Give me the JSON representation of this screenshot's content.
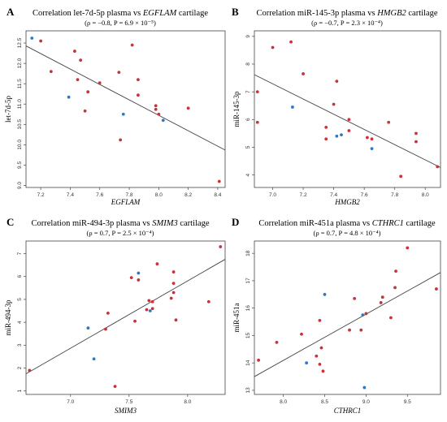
{
  "colors": {
    "red": "#c8323c",
    "blue": "#2e78c8",
    "line": "#444444"
  },
  "chart_data": [
    {
      "type": "scatter",
      "letter": "A",
      "title_prefix": "Correlation let-7d-5p plasma vs ",
      "title_gene": "EGFLAM",
      "title_suffix": " cartilage",
      "subtitle": "(ρ = −0.8, P = 6.9 × 10⁻⁵)",
      "xlabel": "EGFLAM",
      "ylabel": "let-7d-5p",
      "xlim": [
        7.1,
        8.45
      ],
      "ylim": [
        8.95,
        12.8
      ],
      "xticks": [
        7.2,
        7.4,
        7.6,
        7.8,
        8.0,
        8.2,
        8.4
      ],
      "xtick_labels": [
        "7.2",
        "7.4",
        "7.6",
        "7.8",
        "8.0",
        "8.2",
        "8.4"
      ],
      "yticks": [
        9.0,
        9.5,
        10.0,
        10.5,
        11.0,
        11.5,
        12.0,
        12.5
      ],
      "ytick_labels": [
        "9.0",
        "9.5",
        "10.0",
        "10.5",
        "11.0",
        "11.5",
        "12.0",
        "12.5"
      ],
      "fit": [
        [
          7.1,
          12.43
        ],
        [
          8.45,
          9.87
        ]
      ],
      "red_points": [
        [
          7.2,
          12.55
        ],
        [
          7.27,
          11.8
        ],
        [
          7.43,
          12.3
        ],
        [
          7.47,
          12.08
        ],
        [
          7.45,
          11.6
        ],
        [
          7.52,
          11.3
        ],
        [
          7.5,
          10.83
        ],
        [
          7.6,
          11.52
        ],
        [
          7.73,
          11.78
        ],
        [
          7.74,
          10.12
        ],
        [
          7.82,
          12.45
        ],
        [
          7.86,
          11.6
        ],
        [
          7.86,
          11.22
        ],
        [
          7.98,
          10.96
        ],
        [
          7.98,
          10.87
        ],
        [
          8.0,
          10.75
        ],
        [
          8.2,
          10.9
        ],
        [
          8.41,
          9.1
        ]
      ],
      "blue_points": [
        [
          7.14,
          12.62
        ],
        [
          7.39,
          11.17
        ],
        [
          7.76,
          10.75
        ],
        [
          8.03,
          10.6
        ]
      ]
    },
    {
      "type": "scatter",
      "letter": "B",
      "title_prefix": "Correlation miR-145-3p plasma vs ",
      "title_gene": "HMGB2",
      "title_suffix": " cartilage",
      "subtitle": "(ρ = −0.7, P = 2.3 × 10⁻⁴)",
      "xlabel": "HMGB2",
      "ylabel": "miR-145-3p",
      "xlim": [
        6.88,
        8.1
      ],
      "ylim": [
        3.55,
        9.2
      ],
      "xticks": [
        7.0,
        7.2,
        7.4,
        7.6,
        7.8,
        8.0
      ],
      "xtick_labels": [
        "7.0",
        "7.2",
        "7.4",
        "7.6",
        "7.8",
        "8.0"
      ],
      "yticks": [
        4,
        5,
        6,
        7,
        8,
        9
      ],
      "ytick_labels": [
        "4",
        "5",
        "6",
        "7",
        "8",
        "9"
      ],
      "fit": [
        [
          6.88,
          7.62
        ],
        [
          8.1,
          4.27
        ]
      ],
      "red_points": [
        [
          6.9,
          7.0
        ],
        [
          6.9,
          5.9
        ],
        [
          7.0,
          8.6
        ],
        [
          7.12,
          8.8
        ],
        [
          7.2,
          7.65
        ],
        [
          7.35,
          5.72
        ],
        [
          7.35,
          5.3
        ],
        [
          7.4,
          6.55
        ],
        [
          7.42,
          7.38
        ],
        [
          7.5,
          6.0
        ],
        [
          7.5,
          5.6
        ],
        [
          7.62,
          5.35
        ],
        [
          7.65,
          5.3
        ],
        [
          7.76,
          5.9
        ],
        [
          7.84,
          3.95
        ],
        [
          7.94,
          5.5
        ],
        [
          7.94,
          5.2
        ],
        [
          8.08,
          4.3
        ]
      ],
      "blue_points": [
        [
          7.13,
          6.45
        ],
        [
          7.42,
          5.4
        ],
        [
          7.45,
          5.45
        ],
        [
          7.65,
          4.95
        ]
      ]
    },
    {
      "type": "scatter",
      "letter": "C",
      "title_prefix": "Correlation miR-494-3p plasma vs ",
      "title_gene": "SMIM3",
      "title_suffix": " cartilage",
      "subtitle": "(ρ = 0.7, P = 2.5 × 10⁻⁴)",
      "xlabel": "SMIM3",
      "ylabel": "miR-494-3p",
      "xlim": [
        6.62,
        8.32
      ],
      "ylim": [
        0.85,
        7.55
      ],
      "xticks": [
        7.0,
        7.5,
        8.0
      ],
      "xtick_labels": [
        "7.0",
        "7.5",
        "8.0"
      ],
      "yticks": [
        1,
        2,
        3,
        4,
        5,
        6,
        7
      ],
      "ytick_labels": [
        "1",
        "2",
        "3",
        "4",
        "5",
        "6",
        "7"
      ],
      "fit": [
        [
          6.62,
          1.75
        ],
        [
          8.32,
          6.75
        ]
      ],
      "red_points": [
        [
          6.65,
          1.9
        ],
        [
          7.3,
          3.7
        ],
        [
          7.32,
          4.4
        ],
        [
          7.38,
          1.2
        ],
        [
          7.52,
          5.95
        ],
        [
          7.55,
          4.05
        ],
        [
          7.58,
          5.85
        ],
        [
          7.65,
          4.55
        ],
        [
          7.67,
          4.95
        ],
        [
          7.7,
          4.6
        ],
        [
          7.7,
          4.9
        ],
        [
          7.74,
          6.55
        ],
        [
          7.86,
          5.05
        ],
        [
          7.88,
          6.2
        ],
        [
          7.88,
          5.7
        ],
        [
          7.88,
          5.3
        ],
        [
          7.9,
          4.1
        ],
        [
          8.18,
          4.9
        ],
        [
          8.28,
          7.3
        ]
      ],
      "blue_points": [
        [
          7.15,
          3.75
        ],
        [
          7.2,
          2.4
        ],
        [
          7.58,
          6.15
        ],
        [
          7.68,
          4.5
        ]
      ]
    },
    {
      "type": "scatter",
      "letter": "D",
      "title_prefix": "Correlation miR-451a plasma vs ",
      "title_gene": "CTHRC1",
      "title_suffix": " cartilage",
      "subtitle": "(ρ = 0.7, P = 4.8 × 10⁻⁴)",
      "xlabel": "CTHRC1",
      "ylabel": "miR-451a",
      "xlim": [
        7.65,
        9.9
      ],
      "ylim": [
        12.85,
        18.45
      ],
      "xticks": [
        8.0,
        8.5,
        9.0,
        9.5
      ],
      "xtick_labels": [
        "8.0",
        "8.5",
        "9.0",
        "9.5"
      ],
      "yticks": [
        13,
        14,
        15,
        16,
        17,
        18
      ],
      "ytick_labels": [
        "13",
        "14",
        "15",
        "16",
        "17",
        "18"
      ],
      "fit": [
        [
          7.65,
          13.5
        ],
        [
          9.9,
          17.3
        ]
      ],
      "red_points": [
        [
          7.7,
          14.1
        ],
        [
          7.92,
          14.75
        ],
        [
          8.22,
          15.05
        ],
        [
          8.4,
          14.25
        ],
        [
          8.44,
          13.95
        ],
        [
          8.44,
          15.55
        ],
        [
          8.46,
          14.55
        ],
        [
          8.48,
          13.7
        ],
        [
          8.8,
          15.2
        ],
        [
          8.86,
          16.35
        ],
        [
          8.94,
          15.2
        ],
        [
          9.0,
          15.8
        ],
        [
          9.18,
          16.2
        ],
        [
          9.2,
          16.4
        ],
        [
          9.3,
          15.65
        ],
        [
          9.35,
          16.75
        ],
        [
          9.36,
          17.35
        ],
        [
          9.5,
          18.2
        ],
        [
          9.85,
          16.7
        ]
      ],
      "blue_points": [
        [
          8.28,
          14.0
        ],
        [
          8.5,
          16.5
        ],
        [
          8.96,
          15.75
        ],
        [
          8.98,
          13.1
        ]
      ]
    }
  ]
}
